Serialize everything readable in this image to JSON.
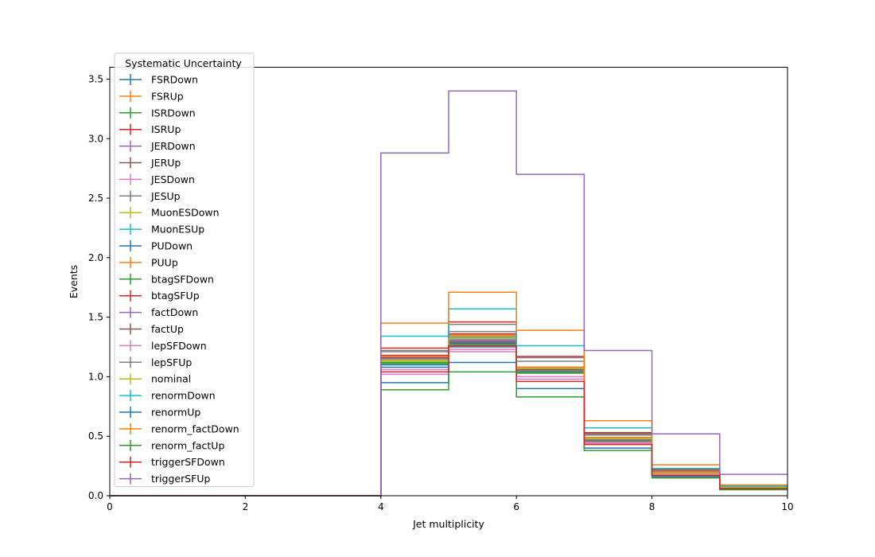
{
  "chart_data": {
    "type": "histogram-step",
    "xlabel": "Jet multiplicity",
    "ylabel": "Events",
    "xlim": [
      0,
      10
    ],
    "ylim": [
      0,
      3.6
    ],
    "xticks": [
      "0",
      "2",
      "4",
      "6",
      "8",
      "10"
    ],
    "yticks": [
      "0.0",
      "0.5",
      "1.0",
      "1.5",
      "2.0",
      "2.5",
      "3.0",
      "3.5"
    ],
    "bin_edges": [
      0,
      1,
      2,
      3,
      4,
      5,
      6,
      7,
      8,
      9,
      10
    ],
    "grid": false,
    "legend": {
      "title": "Systematic Uncertainty",
      "placement": "upper-left"
    },
    "series": [
      {
        "name": "FSRDown",
        "color": "#1f77b4",
        "values": [
          0,
          0,
          0,
          0,
          1.1,
          1.28,
          1.05,
          0.47,
          0.19,
          0.06
        ]
      },
      {
        "name": "FSRUp",
        "color": "#ff7f0e",
        "values": [
          0,
          0,
          0,
          0,
          1.15,
          1.34,
          1.07,
          0.48,
          0.2,
          0.07
        ]
      },
      {
        "name": "ISRDown",
        "color": "#2ca02c",
        "values": [
          0,
          0,
          0,
          0,
          1.12,
          1.29,
          1.04,
          0.46,
          0.19,
          0.06
        ]
      },
      {
        "name": "ISRUp",
        "color": "#d62728",
        "values": [
          0,
          0,
          0,
          0,
          1.18,
          1.36,
          1.08,
          0.49,
          0.2,
          0.07
        ]
      },
      {
        "name": "JERDown",
        "color": "#9467bd",
        "values": [
          0,
          0,
          0,
          0,
          1.14,
          1.31,
          1.06,
          0.47,
          0.19,
          0.07
        ]
      },
      {
        "name": "JERUp",
        "color": "#8c564b",
        "values": [
          0,
          0,
          0,
          0,
          1.16,
          1.3,
          1.07,
          0.48,
          0.2,
          0.07
        ]
      },
      {
        "name": "JESDown",
        "color": "#e377c2",
        "values": [
          0,
          0,
          0,
          0,
          1.02,
          1.21,
          0.98,
          0.44,
          0.18,
          0.06
        ]
      },
      {
        "name": "JESUp",
        "color": "#7f7f7f",
        "values": [
          0,
          0,
          0,
          0,
          1.22,
          1.38,
          1.13,
          0.52,
          0.21,
          0.07
        ]
      },
      {
        "name": "MuonESDown",
        "color": "#bcbd22",
        "values": [
          0,
          0,
          0,
          0,
          1.13,
          1.32,
          1.06,
          0.47,
          0.19,
          0.06
        ]
      },
      {
        "name": "MuonESUp",
        "color": "#17becf",
        "values": [
          0,
          0,
          0,
          0,
          1.14,
          1.33,
          1.07,
          0.48,
          0.2,
          0.07
        ]
      },
      {
        "name": "PUDown",
        "color": "#1f77b4",
        "values": [
          0,
          0,
          0,
          0,
          1.08,
          1.25,
          1.03,
          0.45,
          0.18,
          0.06
        ]
      },
      {
        "name": "PUUp",
        "color": "#ff7f0e",
        "values": [
          0,
          0,
          0,
          0,
          1.17,
          1.35,
          1.08,
          0.49,
          0.2,
          0.07
        ]
      },
      {
        "name": "btagSFDown",
        "color": "#2ca02c",
        "values": [
          0,
          0,
          0,
          0,
          1.11,
          1.27,
          1.03,
          0.46,
          0.18,
          0.06
        ]
      },
      {
        "name": "btagSFUp",
        "color": "#d62728",
        "values": [
          0,
          0,
          0,
          0,
          1.24,
          1.46,
          1.17,
          0.53,
          0.22,
          0.08
        ]
      },
      {
        "name": "factDown",
        "color": "#9467bd",
        "values": [
          0,
          0,
          0,
          0,
          1.15,
          1.3,
          1.05,
          0.47,
          0.19,
          0.07
        ]
      },
      {
        "name": "factUp",
        "color": "#8c564b",
        "values": [
          0,
          0,
          0,
          0,
          1.16,
          1.29,
          1.06,
          0.48,
          0.19,
          0.07
        ]
      },
      {
        "name": "lepSFDown",
        "color": "#e377c2",
        "values": [
          0,
          0,
          0,
          0,
          1.06,
          1.23,
          1.0,
          0.45,
          0.18,
          0.06
        ]
      },
      {
        "name": "lepSFUp",
        "color": "#7f7f7f",
        "values": [
          0,
          0,
          0,
          0,
          1.21,
          1.44,
          1.16,
          0.51,
          0.21,
          0.07
        ]
      },
      {
        "name": "nominal",
        "color": "#bcbd22",
        "values": [
          0,
          0,
          0,
          0,
          1.14,
          1.32,
          1.07,
          0.48,
          0.19,
          0.07
        ]
      },
      {
        "name": "renormDown",
        "color": "#17becf",
        "values": [
          0,
          0,
          0,
          0,
          1.34,
          1.57,
          1.26,
          0.57,
          0.23,
          0.08
        ]
      },
      {
        "name": "renormUp",
        "color": "#1f77b4",
        "values": [
          0,
          0,
          0,
          0,
          0.95,
          1.12,
          0.9,
          0.4,
          0.16,
          0.06
        ]
      },
      {
        "name": "renorm_factDown",
        "color": "#ff7f0e",
        "values": [
          0,
          0,
          0,
          0,
          1.45,
          1.71,
          1.39,
          0.63,
          0.26,
          0.09
        ]
      },
      {
        "name": "renorm_factUp",
        "color": "#2ca02c",
        "values": [
          0,
          0,
          0,
          0,
          0.89,
          1.04,
          0.83,
          0.38,
          0.15,
          0.05
        ]
      },
      {
        "name": "triggerSFDown",
        "color": "#d62728",
        "values": [
          0,
          0,
          0,
          0,
          1.04,
          1.26,
          0.96,
          0.43,
          0.17,
          0.06
        ]
      },
      {
        "name": "triggerSFUp",
        "color": "#9467bd",
        "values": [
          0,
          0,
          0,
          0,
          2.88,
          3.4,
          2.7,
          1.22,
          0.52,
          0.18
        ]
      }
    ]
  }
}
